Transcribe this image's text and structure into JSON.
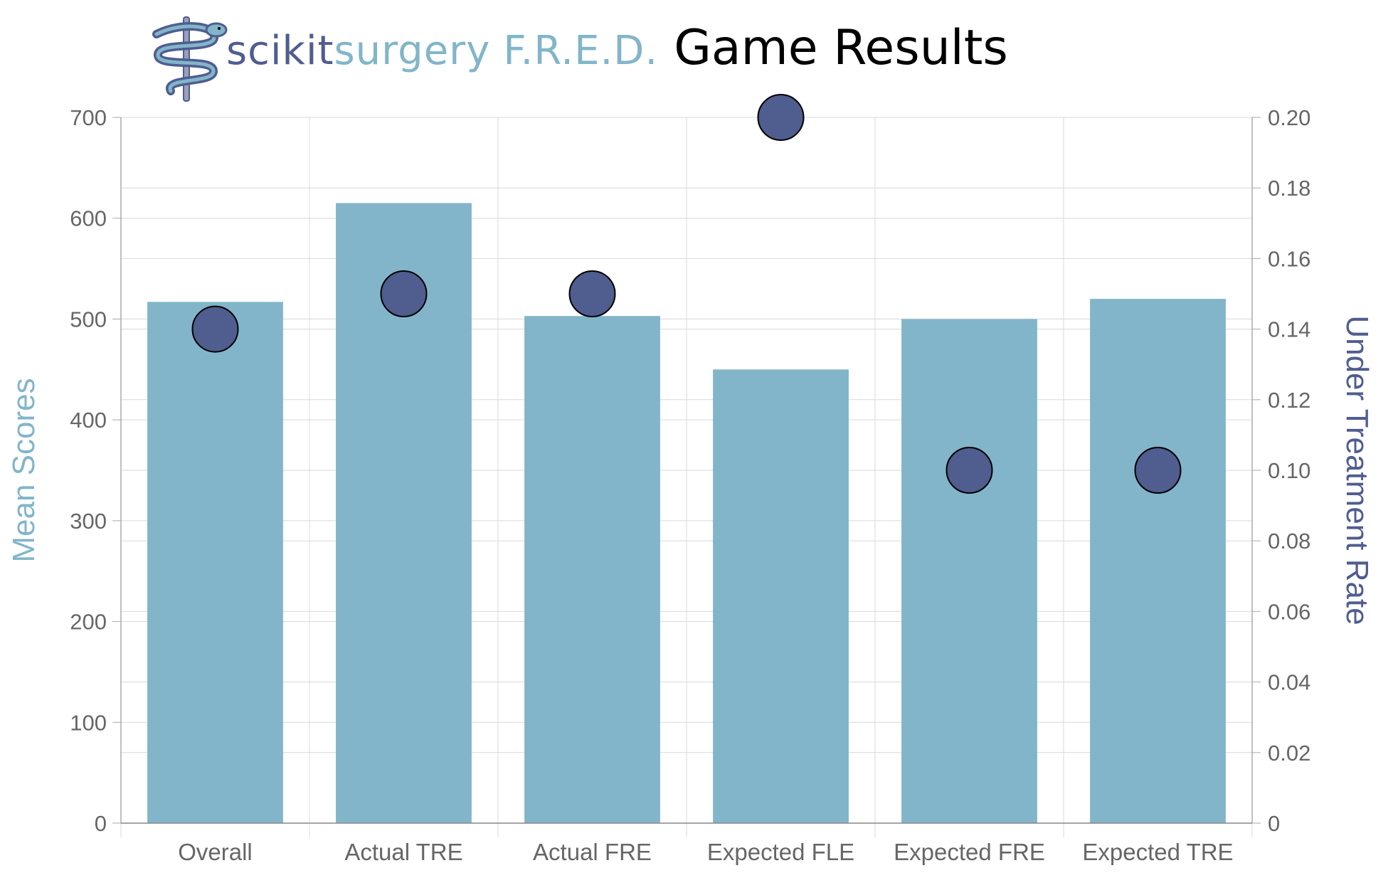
{
  "header": {
    "brand_part1": "scikit",
    "brand_part2": "surgery",
    "brand_part3": "F.R.E.D.",
    "title": "Game Results"
  },
  "colors": {
    "bar": "#82b5c9",
    "point": "#4f5d8f",
    "point_edge": "#000000",
    "axis_left_label": "#82b5c9",
    "axis_right_label": "#4f5d8f",
    "grid": "#d9d9d9",
    "tick_text": "#666666"
  },
  "chart_data": {
    "type": "bar",
    "categories": [
      "Overall",
      "Actual TRE",
      "Actual FRE",
      "Expected FLE",
      "Expected FRE",
      "Expected TRE"
    ],
    "series": [
      {
        "axis": "left",
        "kind": "bar",
        "values": [
          517,
          615,
          503,
          450,
          500,
          520
        ]
      },
      {
        "axis": "right",
        "kind": "scatter",
        "values": [
          0.14,
          0.15,
          0.15,
          0.2,
          0.1,
          0.1
        ]
      }
    ],
    "ylabel": "Mean Scores",
    "ylabel_right": "Under Treatment Rate",
    "ylim": [
      0,
      700
    ],
    "ylim_right": [
      0,
      0.2
    ],
    "yticks": [
      "0",
      "100",
      "200",
      "300",
      "400",
      "500",
      "600",
      "700"
    ],
    "yticks_right": [
      "0",
      "0.02",
      "0.04",
      "0.06",
      "0.08",
      "0.10",
      "0.12",
      "0.14",
      "0.16",
      "0.18",
      "0.20"
    ],
    "grid": true
  }
}
